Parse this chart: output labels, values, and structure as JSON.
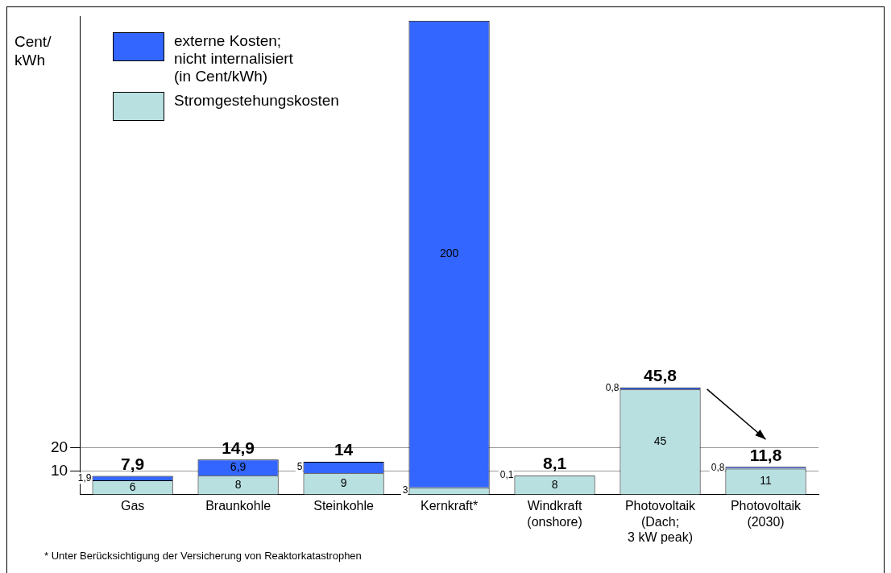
{
  "chart_data": {
    "type": "bar",
    "stacked": true,
    "ylabel": "Cent/ kWh",
    "categories": [
      "Gas",
      "Braunkohle",
      "Steinkohle",
      "Kernkraft*",
      "Windkraft\n(onshore)",
      "Photovoltaik\n(Dach;\n3 kW peak)",
      "Photovoltaik\n(2030)"
    ],
    "series": [
      {
        "name": "Stromgestehungskosten",
        "color": "#b9e0e0",
        "values": [
          6,
          8,
          9,
          3,
          8,
          45,
          11
        ],
        "value_labels": [
          "6",
          "8",
          "9",
          "3",
          "8",
          "45",
          "11"
        ]
      },
      {
        "name": "externe Kosten;\nnicht internalisiert\n(in Cent/kWh)",
        "color": "#3366ff",
        "values": [
          1.9,
          6.9,
          5,
          200,
          0.1,
          0.8,
          0.8
        ],
        "value_labels": [
          "1,9",
          "6,9",
          "5",
          "200",
          "0,1",
          "0,8",
          "0,8"
        ]
      }
    ],
    "totals": [
      "7,9",
      "14,9",
      "14",
      null,
      "8,1",
      "45,8",
      "11,8"
    ],
    "ylim": [
      0,
      205
    ],
    "yticks": [
      10,
      20
    ],
    "grid": "y",
    "legend": "top left",
    "annotations": [
      "* Unter Berücksichtigung der Versicherung von Reaktorkatastrophen"
    ]
  }
}
